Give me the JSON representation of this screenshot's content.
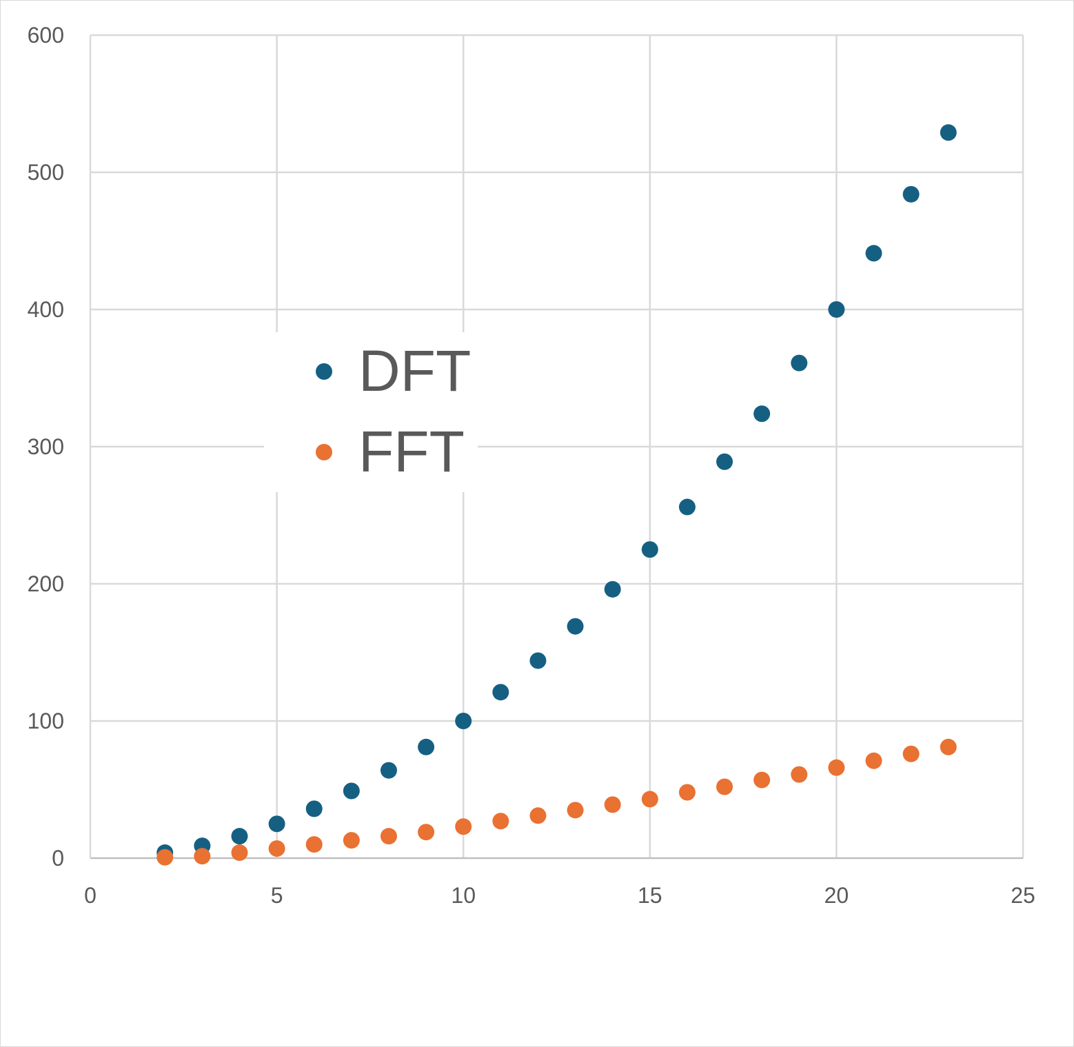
{
  "chart_data": {
    "type": "scatter",
    "title": "",
    "xlabel": "",
    "ylabel": "",
    "xlim": [
      0,
      25
    ],
    "ylim": [
      0,
      600
    ],
    "x_ticks": [
      0,
      5,
      10,
      15,
      20,
      25
    ],
    "y_ticks": [
      0,
      100,
      200,
      300,
      400,
      500,
      600
    ],
    "x_tick_labels": [
      "0",
      "5",
      "10",
      "15",
      "20",
      "25"
    ],
    "y_tick_labels": [
      "0",
      "100",
      "200",
      "300",
      "400",
      "500",
      "600"
    ],
    "grid": true,
    "legend_position": "center-left",
    "series": [
      {
        "name": "DFT",
        "color": "#156082",
        "x": [
          2,
          3,
          4,
          5,
          6,
          7,
          8,
          9,
          10,
          11,
          12,
          13,
          14,
          15,
          16,
          17,
          18,
          19,
          20,
          21,
          22,
          23
        ],
        "y": [
          4,
          9,
          16,
          25,
          36,
          49,
          64,
          81,
          100,
          121,
          144,
          169,
          196,
          225,
          256,
          289,
          324,
          361,
          400,
          441,
          484,
          529
        ]
      },
      {
        "name": "FFT",
        "color": "#E97132",
        "x": [
          2,
          3,
          4,
          5,
          6,
          7,
          8,
          9,
          10,
          11,
          12,
          13,
          14,
          15,
          16,
          17,
          18,
          19,
          20,
          21,
          22,
          23
        ],
        "y": [
          0.6,
          1.4,
          4,
          7,
          10,
          13,
          16,
          19,
          23,
          27,
          31,
          35,
          39,
          43,
          48,
          52,
          57,
          61,
          66,
          71,
          76,
          81
        ]
      }
    ]
  }
}
